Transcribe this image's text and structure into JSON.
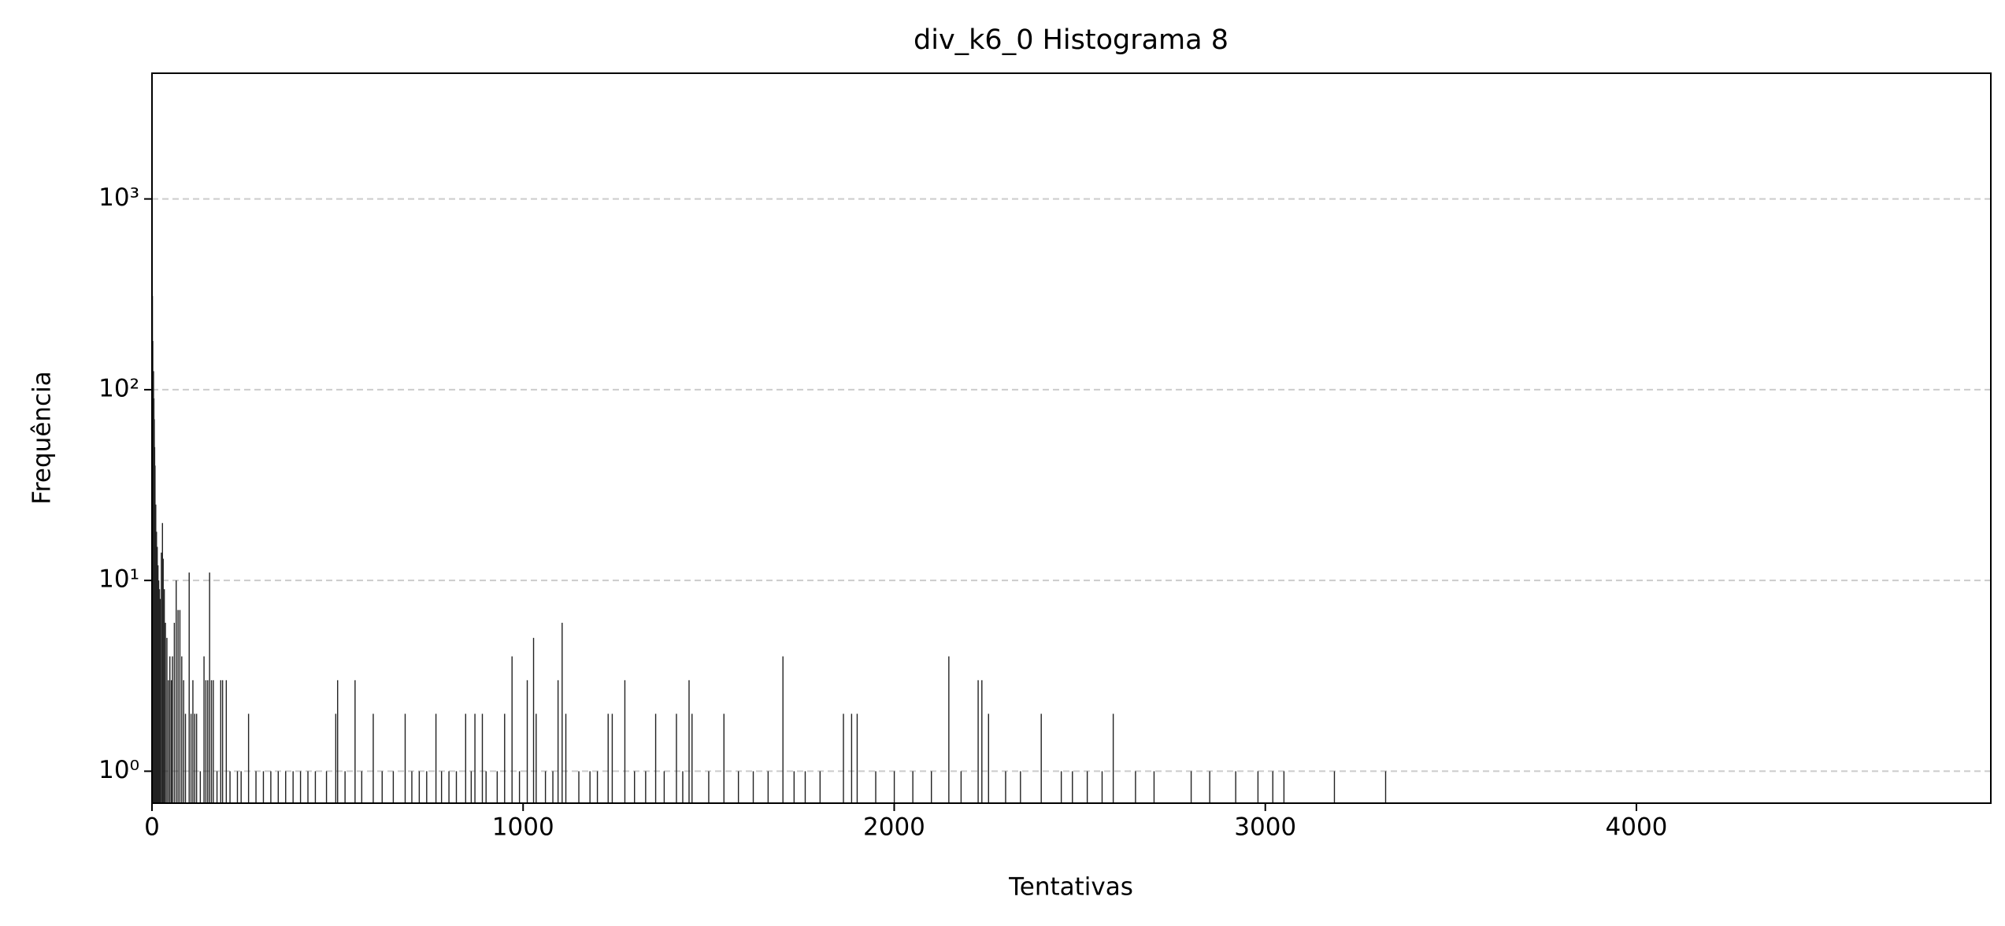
{
  "chart_data": {
    "type": "bar",
    "title": "div_k6_0 Histograma 8",
    "xlabel": "Tentativas",
    "ylabel": "Frequência",
    "log_y": true,
    "grid": true,
    "color": "#222222",
    "xlim": [
      0,
      4955
    ],
    "xticks": [
      0,
      1000,
      2000,
      3000,
      4000
    ],
    "ylim": [
      0.68,
      4560
    ],
    "yticks": [
      {
        "value": 1,
        "label": "10⁰"
      },
      {
        "value": 10,
        "label": "10¹"
      },
      {
        "value": 100,
        "label": "10²"
      },
      {
        "value": 1000,
        "label": "10³"
      }
    ],
    "x": [
      1,
      2,
      3,
      4,
      5,
      6,
      7,
      8,
      10,
      12,
      14,
      16,
      18,
      20,
      22,
      25,
      28,
      30,
      33,
      36,
      40,
      44,
      48,
      52,
      55,
      60,
      65,
      70,
      75,
      80,
      85,
      90,
      100,
      105,
      110,
      115,
      120,
      130,
      140,
      145,
      150,
      155,
      160,
      165,
      175,
      185,
      190,
      200,
      210,
      230,
      240,
      260,
      280,
      300,
      320,
      340,
      360,
      380,
      400,
      420,
      440,
      470,
      495,
      500,
      520,
      547,
      565,
      596,
      620,
      650,
      682,
      700,
      720,
      740,
      765,
      780,
      800,
      820,
      845,
      860,
      870,
      890,
      900,
      930,
      950,
      970,
      990,
      1011,
      1028,
      1035,
      1060,
      1080,
      1094,
      1105,
      1115,
      1150,
      1180,
      1200,
      1229,
      1240,
      1274,
      1300,
      1330,
      1357,
      1380,
      1413,
      1430,
      1447,
      1455,
      1500,
      1541,
      1580,
      1620,
      1660,
      1700,
      1730,
      1760,
      1800,
      1863,
      1885,
      1900,
      1950,
      2000,
      2050,
      2100,
      2147,
      2180,
      2226,
      2236,
      2254,
      2300,
      2340,
      2396,
      2450,
      2480,
      2520,
      2560,
      2590,
      2650,
      2700,
      2800,
      2850,
      2920,
      2980,
      3020,
      3050,
      3186,
      3324
    ],
    "values": [
      310,
      180,
      125,
      125,
      90,
      70,
      50,
      40,
      25,
      18,
      15,
      12,
      10,
      9,
      8,
      14,
      20,
      13,
      9,
      6,
      5,
      3,
      4,
      3,
      4,
      6,
      10,
      7,
      7,
      4,
      3,
      2,
      11,
      2,
      3,
      2,
      2,
      1,
      4,
      3,
      3,
      11,
      3,
      3,
      1,
      3,
      3,
      3,
      1,
      1,
      1,
      2,
      1,
      1,
      1,
      1,
      1,
      1,
      1,
      1,
      1,
      1,
      2,
      3,
      1,
      3,
      1,
      2,
      1,
      1,
      2,
      1,
      1,
      1,
      2,
      1,
      1,
      1,
      2,
      1,
      2,
      2,
      1,
      1,
      2,
      4,
      1,
      3,
      5,
      2,
      1,
      1,
      3,
      6,
      2,
      1,
      1,
      1,
      2,
      2,
      3,
      1,
      1,
      2,
      1,
      2,
      1,
      3,
      2,
      1,
      2,
      1,
      1,
      1,
      4,
      1,
      1,
      1,
      2,
      2,
      2,
      1,
      1,
      1,
      1,
      4,
      1,
      3,
      3,
      2,
      1,
      1,
      2,
      1,
      1,
      1,
      1,
      2,
      1,
      1,
      1,
      1,
      1,
      1,
      1,
      1,
      1,
      1
    ]
  }
}
